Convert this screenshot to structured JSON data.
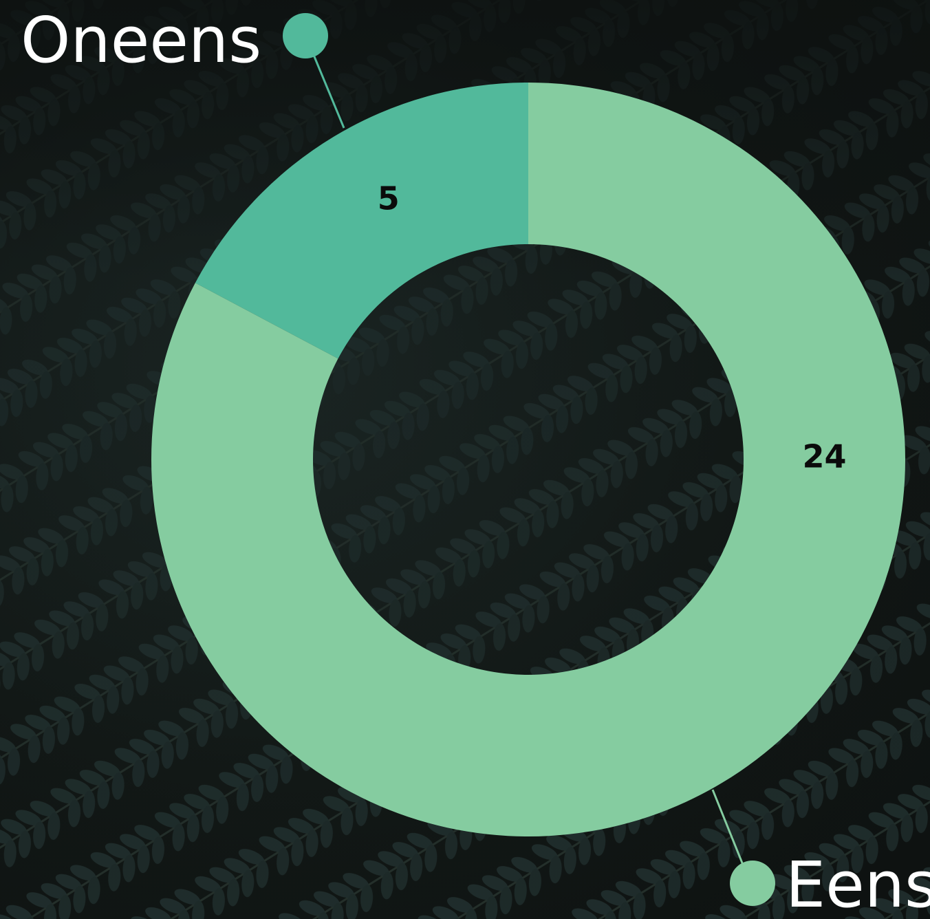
{
  "chart_data": {
    "type": "pie",
    "donut": true,
    "categories": [
      "Oneens",
      "Eens"
    ],
    "values": [
      5,
      24
    ],
    "colors": [
      "#52b99b",
      "#85cca0"
    ],
    "legend": "callouts"
  }
}
